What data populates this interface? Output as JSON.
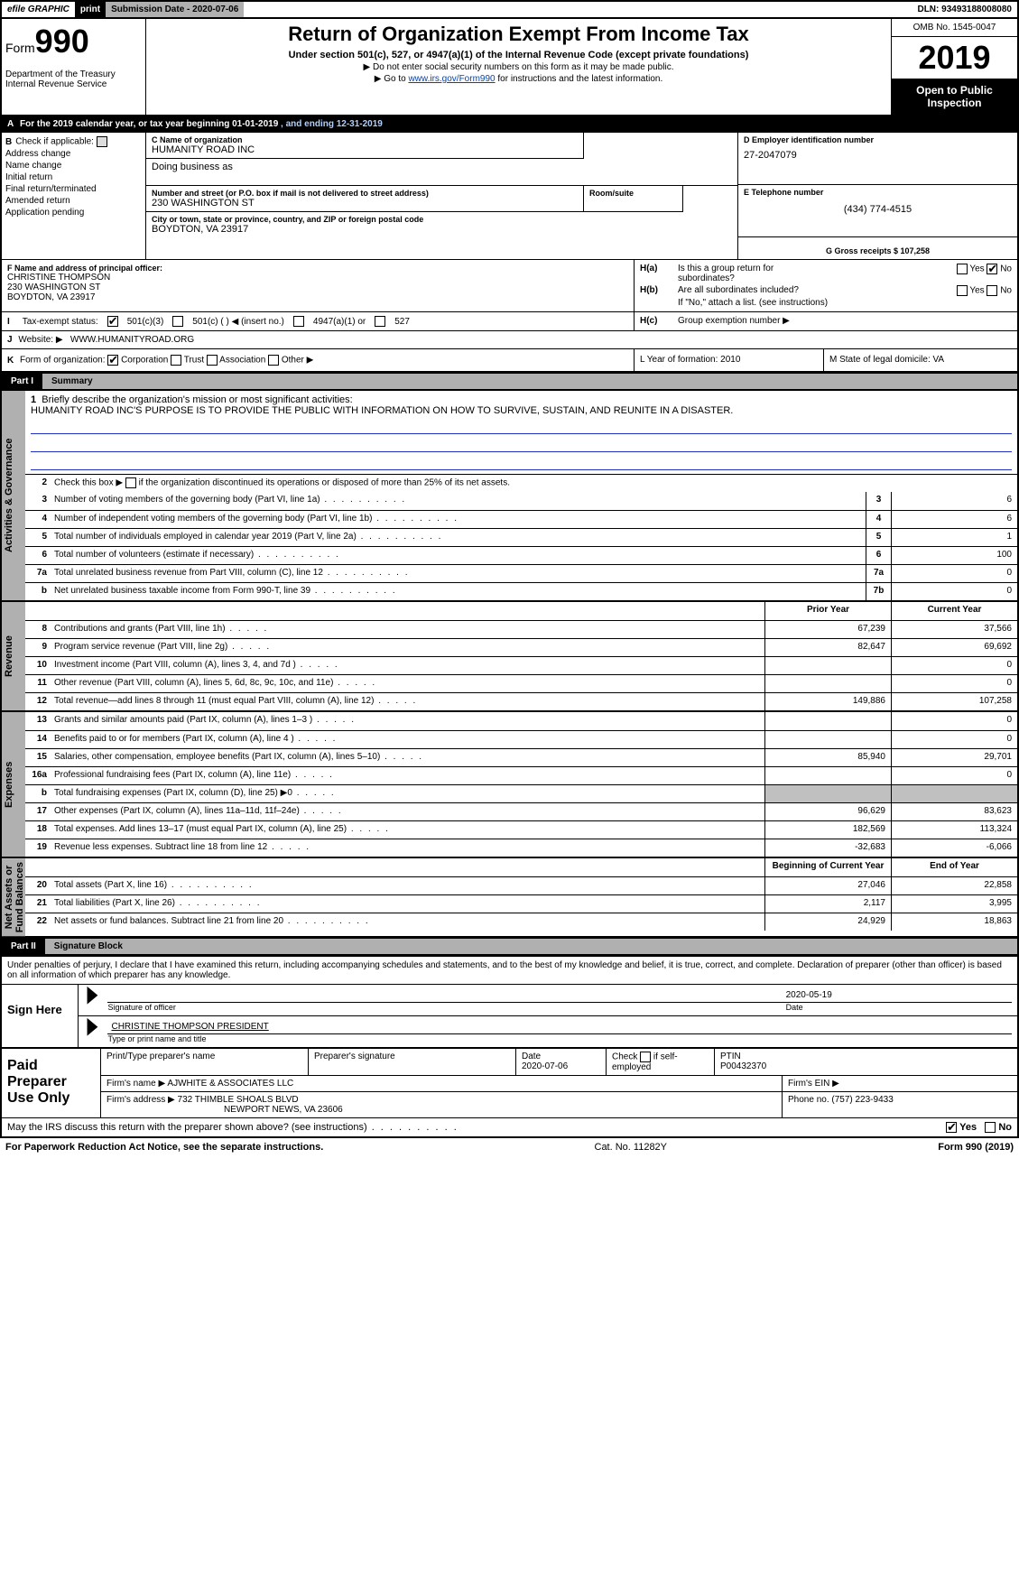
{
  "efile": {
    "graphic": "efile GRAPHIC",
    "print": "print",
    "sub": "Submission Date - 2020-07-06",
    "dln": "DLN: 93493188008080"
  },
  "header": {
    "form_prefix": "Form",
    "form_no": "990",
    "dept": "Department of the Treasury\nInternal Revenue Service",
    "title": "Return of Organization Exempt From Income Tax",
    "sub1": "Under section 501(c), 527, or 4947(a)(1) of the Internal Revenue Code (except private foundations)",
    "sub2": "▶ Do not enter social security numbers on this form as it may be made public.",
    "sub3_pre": "▶ Go to ",
    "sub3_link": "www.irs.gov/Form990",
    "sub3_post": " for instructions and the latest information.",
    "omb": "OMB No. 1545-0047",
    "year": "2019",
    "open": "Open to Public\nInspection"
  },
  "period": {
    "a": "A",
    "text": "For the 2019 calendar year, or tax year beginning 01-01-2019",
    "ending": ", and ending 12-31-2019"
  },
  "B": {
    "hdr": "Check if applicable:",
    "items": [
      "Address change",
      "Name change",
      "Initial return",
      "Final return/terminated",
      "Amended return",
      "Application pending"
    ]
  },
  "C": {
    "name_lbl": "C Name of organization",
    "name": "HUMANITY ROAD INC",
    "dba_lbl": "Doing business as",
    "dba": "",
    "street_lbl": "Number and street (or P.O. box if mail is not delivered to street address)",
    "room_lbl": "Room/suite",
    "street": "230 WASHINGTON ST",
    "city_lbl": "City or town, state or province, country, and ZIP or foreign postal code",
    "city": "BOYDTON, VA  23917"
  },
  "D": {
    "lbl": "D Employer identification number",
    "val": "27-2047079"
  },
  "E": {
    "lbl": "E Telephone number",
    "val": "(434) 774-4515"
  },
  "G": {
    "lbl": "G Gross receipts $ 107,258"
  },
  "F": {
    "lbl": "F  Name and address of principal officer:",
    "l1": "CHRISTINE THOMPSON",
    "l2": "230 WASHINGTON ST",
    "l3": "BOYDTON, VA  23917"
  },
  "H": {
    "a_lbl": "Is this a group return for",
    "a_lbl2": "subordinates?",
    "b_lbl": "Are all subordinates included?",
    "b_note": "If \"No,\" attach a list. (see instructions)",
    "c_lbl": "Group exemption number ▶",
    "ha": "H(a)",
    "hb": "H(b)",
    "hc": "H(c)",
    "yes": "Yes",
    "no": "No"
  },
  "I": {
    "lbl": "Tax-exempt status:",
    "o1": "501(c)(3)",
    "o2": "501(c) (   ) ◀ (insert no.)",
    "o3": "4947(a)(1) or",
    "o4": "527"
  },
  "J": {
    "lbl": "Website: ▶",
    "val": "WWW.HUMANITYROAD.ORG"
  },
  "K": {
    "lbl": "Form of organization:",
    "o1": "Corporation",
    "o2": "Trust",
    "o3": "Association",
    "o4": "Other ▶"
  },
  "L": {
    "lbl": "L Year of formation: 2010"
  },
  "M": {
    "lbl": "M State of legal domicile: VA"
  },
  "part1": {
    "lbl": "Part I",
    "title": "Summary"
  },
  "mission": {
    "num": "1",
    "lbl": "Briefly describe the organization's mission or most significant activities:",
    "text": "HUMANITY ROAD INC'S PURPOSE IS TO PROVIDE THE PUBLIC WITH INFORMATION ON HOW TO SURVIVE, SUSTAIN, AND REUNITE IN A DISASTER."
  },
  "gov": {
    "tab": "Activities & Governance",
    "l2_pre": "Check this box ▶ ",
    "l2_post": " if the organization discontinued its operations or disposed of more than 25% of its net assets.",
    "rows": [
      {
        "n": "3",
        "d": "Number of voting members of the governing body (Part VI, line 1a)",
        "box": "3",
        "v": "6"
      },
      {
        "n": "4",
        "d": "Number of independent voting members of the governing body (Part VI, line 1b)",
        "box": "4",
        "v": "6"
      },
      {
        "n": "5",
        "d": "Total number of individuals employed in calendar year 2019 (Part V, line 2a)",
        "box": "5",
        "v": "1"
      },
      {
        "n": "6",
        "d": "Total number of volunteers (estimate if necessary)",
        "box": "6",
        "v": "100"
      },
      {
        "n": "7a",
        "d": "Total unrelated business revenue from Part VIII, column (C), line 12",
        "box": "7a",
        "v": "0"
      },
      {
        "n": "b",
        "d": "Net unrelated business taxable income from Form 990-T, line 39",
        "box": "7b",
        "v": "0"
      }
    ]
  },
  "rev": {
    "tab": "Revenue",
    "hdr_py": "Prior Year",
    "hdr_cy": "Current Year",
    "rows": [
      {
        "n": "8",
        "d": "Contributions and grants (Part VIII, line 1h)",
        "py": "67,239",
        "cy": "37,566"
      },
      {
        "n": "9",
        "d": "Program service revenue (Part VIII, line 2g)",
        "py": "82,647",
        "cy": "69,692"
      },
      {
        "n": "10",
        "d": "Investment income (Part VIII, column (A), lines 3, 4, and 7d )",
        "py": "",
        "cy": "0"
      },
      {
        "n": "11",
        "d": "Other revenue (Part VIII, column (A), lines 5, 6d, 8c, 9c, 10c, and 11e)",
        "py": "",
        "cy": "0"
      },
      {
        "n": "12",
        "d": "Total revenue—add lines 8 through 11 (must equal Part VIII, column (A), line 12)",
        "py": "149,886",
        "cy": "107,258"
      }
    ]
  },
  "exp": {
    "tab": "Expenses",
    "rows": [
      {
        "n": "13",
        "d": "Grants and similar amounts paid (Part IX, column (A), lines 1–3 )",
        "py": "",
        "cy": "0"
      },
      {
        "n": "14",
        "d": "Benefits paid to or for members (Part IX, column (A), line 4 )",
        "py": "",
        "cy": "0"
      },
      {
        "n": "15",
        "d": "Salaries, other compensation, employee benefits (Part IX, column (A), lines 5–10)",
        "py": "85,940",
        "cy": "29,701"
      },
      {
        "n": "16a",
        "d": "Professional fundraising fees (Part IX, column (A), line 11e)",
        "py": "",
        "cy": "0"
      },
      {
        "n": "b",
        "d": "Total fundraising expenses (Part IX, column (D), line 25) ▶0",
        "py": "shade",
        "cy": "shade"
      },
      {
        "n": "17",
        "d": "Other expenses (Part IX, column (A), lines 11a–11d, 11f–24e)",
        "py": "96,629",
        "cy": "83,623"
      },
      {
        "n": "18",
        "d": "Total expenses. Add lines 13–17 (must equal Part IX, column (A), line 25)",
        "py": "182,569",
        "cy": "113,324"
      },
      {
        "n": "19",
        "d": "Revenue less expenses. Subtract line 18 from line 12",
        "py": "-32,683",
        "cy": "-6,066"
      }
    ]
  },
  "na": {
    "tab": "Net Assets or\nFund Balances",
    "hdr_b": "Beginning of Current Year",
    "hdr_e": "End of Year",
    "rows": [
      {
        "n": "20",
        "d": "Total assets (Part X, line 16)",
        "b": "27,046",
        "e": "22,858"
      },
      {
        "n": "21",
        "d": "Total liabilities (Part X, line 26)",
        "b": "2,117",
        "e": "3,995"
      },
      {
        "n": "22",
        "d": "Net assets or fund balances. Subtract line 21 from line 20",
        "b": "24,929",
        "e": "18,863"
      }
    ]
  },
  "part2": {
    "lbl": "Part II",
    "title": "Signature Block"
  },
  "sig": {
    "note": "Under penalties of perjury, I declare that I have examined this return, including accompanying schedules and statements, and to the best of my knowledge and belief, it is true, correct, and complete. Declaration of preparer (other than officer) is based on all information of which preparer has any knowledge.",
    "here": "Sign Here",
    "off_sig": "Signature of officer",
    "date_lbl": "Date",
    "date": "2020-05-19",
    "off_name": "CHRISTINE THOMPSON  PRESIDENT",
    "off_cap": "Type or print name and title"
  },
  "prep": {
    "lbl": "Paid\nPreparer\nUse Only",
    "h1": "Print/Type preparer's name",
    "h2": "Preparer's signature",
    "h3": "Date",
    "h3v": "2020-07-06",
    "h4": "Check",
    "h4b": "if self-employed",
    "h5": "PTIN",
    "h5v": "P00432370",
    "firm_lbl": "Firm's name   ▶",
    "firm": "AJWHITE & ASSOCIATES LLC",
    "ein_lbl": "Firm's EIN ▶",
    "addr_lbl": "Firm's address ▶",
    "addr1": "732 THIMBLE SHOALS BLVD",
    "addr2": "NEWPORT NEWS, VA  23606",
    "phone_lbl": "Phone no. (757) 223-9433"
  },
  "discuss": {
    "q": "May the IRS discuss this return with the preparer shown above? (see instructions)",
    "yes": "Yes",
    "no": "No"
  },
  "footer": {
    "l": "For Paperwork Reduction Act Notice, see the separate instructions.",
    "m": "Cat. No. 11282Y",
    "r": "Form 990 (2019)"
  },
  "num2": "2"
}
